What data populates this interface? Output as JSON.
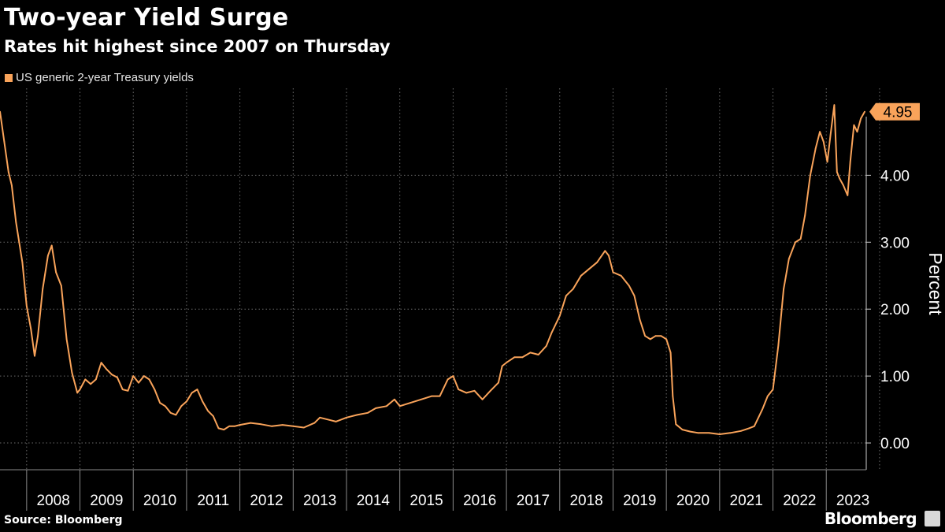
{
  "title": "Two-year Yield Surge",
  "subtitle": "Rates hit highest since 2007 on Thursday",
  "source": "Source: Bloomberg",
  "brand": "Bloomberg",
  "colors": {
    "series": "#f9a35a",
    "background": "#000000",
    "grid": "#6a6a6a"
  },
  "chart_data": {
    "type": "line",
    "title": "Two-year Yield Surge",
    "subtitle": "Rates hit highest since 2007 on Thursday",
    "ylabel": "Percent",
    "xlabel": "",
    "xlim": [
      2007.5,
      2023.75
    ],
    "ylim": [
      -0.4,
      5.3
    ],
    "yticks": [
      0,
      1,
      2,
      3,
      4
    ],
    "ytick_labels": [
      "0.00",
      "1.00",
      "2.00",
      "3.00",
      "4.00"
    ],
    "xticks": [
      2008,
      2009,
      2010,
      2011,
      2012,
      2013,
      2014,
      2015,
      2016,
      2017,
      2018,
      2019,
      2020,
      2021,
      2022,
      2023
    ],
    "xtick_labels": [
      "2008",
      "2009",
      "2010",
      "2011",
      "2012",
      "2013",
      "2014",
      "2015",
      "2016",
      "2017",
      "2018",
      "2019",
      "2020",
      "2021",
      "2022",
      "2023"
    ],
    "grid": true,
    "legend": "top-left",
    "last_value_label": "4.95",
    "series": [
      {
        "name": "US generic 2-year Treasury yields",
        "points": [
          [
            2007.5,
            4.95
          ],
          [
            2007.58,
            4.5
          ],
          [
            2007.66,
            4.05
          ],
          [
            2007.72,
            3.85
          ],
          [
            2007.8,
            3.3
          ],
          [
            2007.87,
            2.95
          ],
          [
            2007.92,
            2.7
          ],
          [
            2008.0,
            2.05
          ],
          [
            2008.08,
            1.7
          ],
          [
            2008.15,
            1.3
          ],
          [
            2008.21,
            1.6
          ],
          [
            2008.3,
            2.3
          ],
          [
            2008.4,
            2.8
          ],
          [
            2008.47,
            2.95
          ],
          [
            2008.55,
            2.55
          ],
          [
            2008.65,
            2.35
          ],
          [
            2008.75,
            1.55
          ],
          [
            2008.85,
            1.05
          ],
          [
            2008.95,
            0.75
          ],
          [
            2009.0,
            0.8
          ],
          [
            2009.1,
            0.95
          ],
          [
            2009.2,
            0.88
          ],
          [
            2009.3,
            0.95
          ],
          [
            2009.4,
            1.2
          ],
          [
            2009.5,
            1.1
          ],
          [
            2009.6,
            1.02
          ],
          [
            2009.7,
            0.98
          ],
          [
            2009.8,
            0.8
          ],
          [
            2009.9,
            0.78
          ],
          [
            2010.0,
            1.0
          ],
          [
            2010.1,
            0.9
          ],
          [
            2010.2,
            1.0
          ],
          [
            2010.3,
            0.95
          ],
          [
            2010.4,
            0.8
          ],
          [
            2010.5,
            0.6
          ],
          [
            2010.6,
            0.55
          ],
          [
            2010.7,
            0.45
          ],
          [
            2010.8,
            0.42
          ],
          [
            2010.9,
            0.55
          ],
          [
            2011.0,
            0.62
          ],
          [
            2011.1,
            0.75
          ],
          [
            2011.2,
            0.8
          ],
          [
            2011.3,
            0.62
          ],
          [
            2011.4,
            0.48
          ],
          [
            2011.5,
            0.4
          ],
          [
            2011.6,
            0.22
          ],
          [
            2011.7,
            0.2
          ],
          [
            2011.8,
            0.25
          ],
          [
            2011.9,
            0.25
          ],
          [
            2012.0,
            0.27
          ],
          [
            2012.2,
            0.3
          ],
          [
            2012.4,
            0.28
          ],
          [
            2012.6,
            0.25
          ],
          [
            2012.8,
            0.27
          ],
          [
            2013.0,
            0.25
          ],
          [
            2013.2,
            0.23
          ],
          [
            2013.4,
            0.3
          ],
          [
            2013.5,
            0.38
          ],
          [
            2013.65,
            0.35
          ],
          [
            2013.8,
            0.32
          ],
          [
            2014.0,
            0.38
          ],
          [
            2014.2,
            0.42
          ],
          [
            2014.4,
            0.45
          ],
          [
            2014.55,
            0.52
          ],
          [
            2014.75,
            0.55
          ],
          [
            2014.9,
            0.65
          ],
          [
            2015.0,
            0.55
          ],
          [
            2015.2,
            0.6
          ],
          [
            2015.4,
            0.65
          ],
          [
            2015.6,
            0.7
          ],
          [
            2015.75,
            0.7
          ],
          [
            2015.9,
            0.95
          ],
          [
            2016.0,
            1.0
          ],
          [
            2016.1,
            0.8
          ],
          [
            2016.25,
            0.75
          ],
          [
            2016.4,
            0.78
          ],
          [
            2016.55,
            0.65
          ],
          [
            2016.7,
            0.78
          ],
          [
            2016.85,
            0.9
          ],
          [
            2016.92,
            1.15
          ],
          [
            2017.0,
            1.2
          ],
          [
            2017.15,
            1.28
          ],
          [
            2017.3,
            1.28
          ],
          [
            2017.45,
            1.35
          ],
          [
            2017.6,
            1.32
          ],
          [
            2017.75,
            1.45
          ],
          [
            2017.85,
            1.65
          ],
          [
            2018.0,
            1.9
          ],
          [
            2018.12,
            2.2
          ],
          [
            2018.25,
            2.3
          ],
          [
            2018.4,
            2.5
          ],
          [
            2018.55,
            2.6
          ],
          [
            2018.7,
            2.7
          ],
          [
            2018.85,
            2.87
          ],
          [
            2018.92,
            2.8
          ],
          [
            2019.0,
            2.55
          ],
          [
            2019.15,
            2.5
          ],
          [
            2019.3,
            2.35
          ],
          [
            2019.4,
            2.2
          ],
          [
            2019.5,
            1.85
          ],
          [
            2019.6,
            1.6
          ],
          [
            2019.7,
            1.55
          ],
          [
            2019.8,
            1.6
          ],
          [
            2019.9,
            1.6
          ],
          [
            2020.0,
            1.55
          ],
          [
            2020.08,
            1.35
          ],
          [
            2020.12,
            0.7
          ],
          [
            2020.18,
            0.28
          ],
          [
            2020.3,
            0.2
          ],
          [
            2020.45,
            0.17
          ],
          [
            2020.6,
            0.15
          ],
          [
            2020.8,
            0.15
          ],
          [
            2021.0,
            0.13
          ],
          [
            2021.2,
            0.15
          ],
          [
            2021.4,
            0.18
          ],
          [
            2021.55,
            0.22
          ],
          [
            2021.65,
            0.25
          ],
          [
            2021.8,
            0.5
          ],
          [
            2021.9,
            0.7
          ],
          [
            2022.0,
            0.8
          ],
          [
            2022.1,
            1.45
          ],
          [
            2022.2,
            2.3
          ],
          [
            2022.3,
            2.75
          ],
          [
            2022.42,
            3.0
          ],
          [
            2022.52,
            3.05
          ],
          [
            2022.6,
            3.4
          ],
          [
            2022.7,
            4.0
          ],
          [
            2022.8,
            4.4
          ],
          [
            2022.88,
            4.65
          ],
          [
            2022.95,
            4.5
          ],
          [
            2023.02,
            4.2
          ],
          [
            2023.08,
            4.6
          ],
          [
            2023.15,
            5.05
          ],
          [
            2023.2,
            4.05
          ],
          [
            2023.25,
            3.95
          ],
          [
            2023.32,
            3.85
          ],
          [
            2023.4,
            3.7
          ],
          [
            2023.45,
            4.2
          ],
          [
            2023.52,
            4.75
          ],
          [
            2023.58,
            4.65
          ],
          [
            2023.65,
            4.85
          ],
          [
            2023.72,
            4.95
          ]
        ]
      }
    ]
  }
}
